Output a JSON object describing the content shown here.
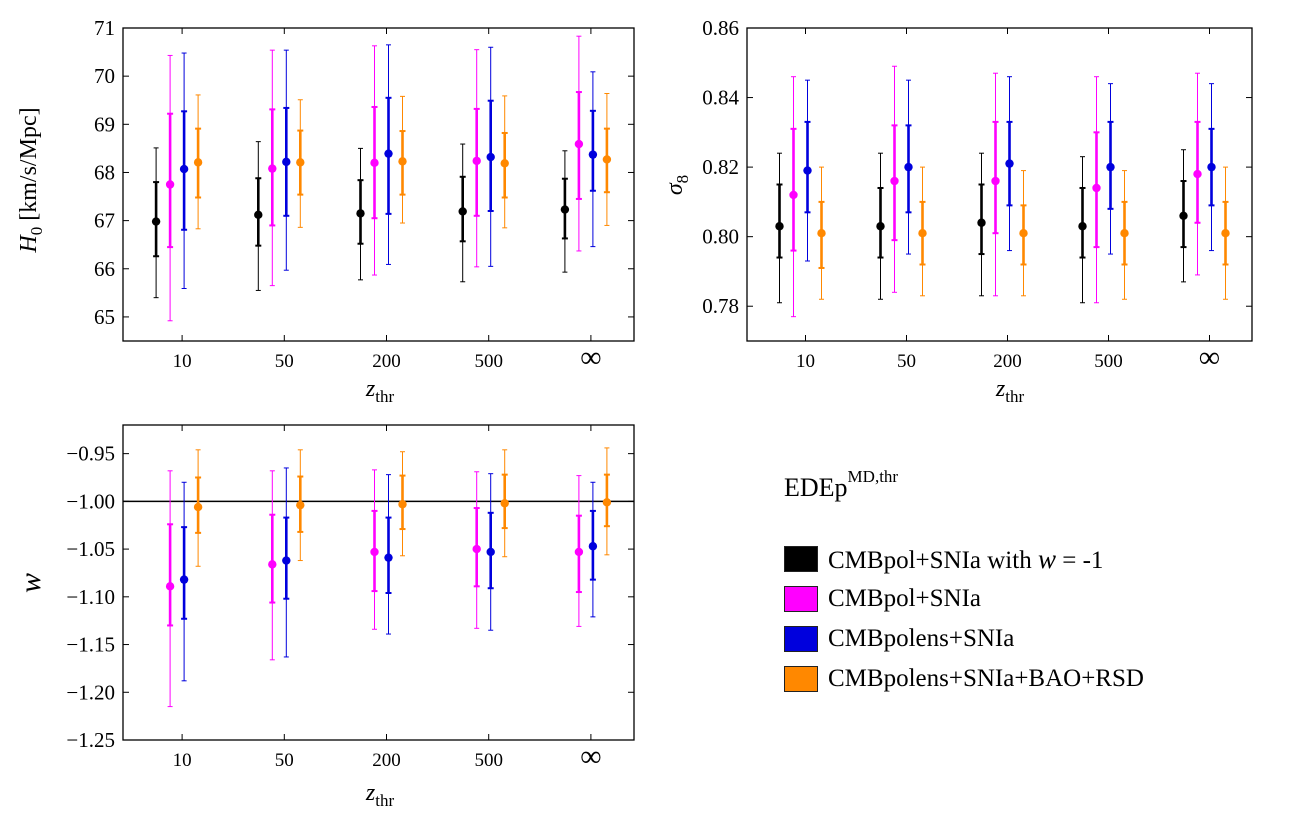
{
  "colors": {
    "black": "#000000",
    "magenta": "#ff00ff",
    "blue": "#0000dd",
    "orange": "#ff8800"
  },
  "legend": {
    "title_main": "EDEp",
    "title_sup": "MD,thr",
    "items": [
      {
        "label": "CMBpol+SNIa with w = -1",
        "label_pre": "CMBpol+SNIa with ",
        "label_var": "w",
        "label_post": " = -1",
        "color": "#000000"
      },
      {
        "label": "CMBpol+SNIa",
        "color": "#ff00ff"
      },
      {
        "label": "CMBpolens+SNIa",
        "color": "#0000dd"
      },
      {
        "label": "CMBpolens+SNIa+BAO+RSD",
        "color": "#ff8800"
      }
    ]
  },
  "chart_data": [
    {
      "type": "scatter",
      "id": "h0",
      "title": "",
      "xlabel": "z",
      "xlabel_sub": "thr",
      "ylabel": "H",
      "ylabel_sub": "0",
      "ylabel_rest": " [km/s/Mpc]",
      "categories": [
        "10",
        "50",
        "200",
        "500",
        "∞"
      ],
      "ylim": [
        64.5,
        71
      ],
      "yticks": [
        65,
        66,
        67,
        68,
        69,
        70,
        71
      ],
      "ytick_labels": [
        "65",
        "66",
        "67",
        "68",
        "69",
        "70",
        "71"
      ],
      "hline": null,
      "series": [
        {
          "name": "CMBpol+SNIa with w = -1",
          "color": "#000000",
          "values": [
            66.98,
            67.12,
            67.15,
            67.19,
            67.23
          ],
          "err68_lo": [
            66.26,
            66.48,
            66.52,
            66.57,
            66.63
          ],
          "err68_hi": [
            67.8,
            67.88,
            67.84,
            67.91,
            67.87
          ],
          "err95_lo": [
            65.4,
            65.55,
            65.77,
            65.73,
            65.93
          ],
          "err95_hi": [
            68.51,
            68.64,
            68.5,
            68.59,
            68.45
          ]
        },
        {
          "name": "CMBpol+SNIa",
          "color": "#ff00ff",
          "values": [
            67.75,
            68.08,
            68.2,
            68.24,
            68.59
          ],
          "err68_lo": [
            66.45,
            66.9,
            67.05,
            67.1,
            67.45
          ],
          "err68_hi": [
            69.22,
            69.31,
            69.36,
            69.32,
            69.67
          ],
          "err95_lo": [
            64.92,
            65.65,
            65.87,
            66.04,
            66.37
          ],
          "err95_hi": [
            70.43,
            70.54,
            70.63,
            70.55,
            70.83
          ]
        },
        {
          "name": "CMBpolens+SNIa",
          "color": "#0000dd",
          "values": [
            68.07,
            68.22,
            68.39,
            68.32,
            68.37
          ],
          "err68_lo": [
            66.81,
            67.1,
            67.14,
            67.2,
            67.62
          ],
          "err68_hi": [
            69.27,
            69.34,
            69.55,
            69.49,
            69.28
          ],
          "err95_lo": [
            65.59,
            65.97,
            66.09,
            66.05,
            66.46
          ],
          "err95_hi": [
            70.48,
            70.54,
            70.65,
            70.6,
            70.09
          ]
        },
        {
          "name": "CMBpolens+SNIa+BAO+RSD",
          "color": "#ff8800",
          "values": [
            68.21,
            68.21,
            68.23,
            68.19,
            68.27
          ],
          "err68_lo": [
            67.48,
            67.54,
            67.54,
            67.48,
            67.59
          ],
          "err68_hi": [
            68.91,
            68.87,
            68.86,
            68.82,
            68.91
          ],
          "err95_lo": [
            66.83,
            66.86,
            66.95,
            66.85,
            66.9
          ],
          "err95_hi": [
            69.61,
            69.51,
            69.58,
            69.59,
            69.64
          ]
        }
      ]
    },
    {
      "type": "scatter",
      "id": "sigma8",
      "title": "",
      "xlabel": "z",
      "xlabel_sub": "thr",
      "ylabel": "σ",
      "ylabel_sub": "8",
      "ylabel_rest": "",
      "categories": [
        "10",
        "50",
        "200",
        "500",
        "∞"
      ],
      "ylim": [
        0.77,
        0.86
      ],
      "yticks": [
        0.78,
        0.8,
        0.82,
        0.84,
        0.86
      ],
      "ytick_labels": [
        "0.78",
        "0.80",
        "0.82",
        "0.84",
        "0.86"
      ],
      "hline": null,
      "series": [
        {
          "name": "CMBpol+SNIa with w = -1",
          "color": "#000000",
          "values": [
            0.803,
            0.803,
            0.804,
            0.803,
            0.806
          ],
          "err68_lo": [
            0.794,
            0.794,
            0.795,
            0.794,
            0.797
          ],
          "err68_hi": [
            0.815,
            0.814,
            0.815,
            0.814,
            0.816
          ],
          "err95_lo": [
            0.781,
            0.782,
            0.783,
            0.781,
            0.787
          ],
          "err95_hi": [
            0.824,
            0.824,
            0.824,
            0.823,
            0.825
          ]
        },
        {
          "name": "CMBpol+SNIa",
          "color": "#ff00ff",
          "values": [
            0.812,
            0.816,
            0.816,
            0.814,
            0.818
          ],
          "err68_lo": [
            0.796,
            0.799,
            0.801,
            0.797,
            0.804
          ],
          "err68_hi": [
            0.831,
            0.832,
            0.833,
            0.83,
            0.833
          ],
          "err95_lo": [
            0.777,
            0.784,
            0.783,
            0.781,
            0.789
          ],
          "err95_hi": [
            0.846,
            0.849,
            0.847,
            0.846,
            0.847
          ]
        },
        {
          "name": "CMBpolens+SNIa",
          "color": "#0000dd",
          "values": [
            0.819,
            0.82,
            0.821,
            0.82,
            0.82
          ],
          "err68_lo": [
            0.807,
            0.807,
            0.809,
            0.808,
            0.809
          ],
          "err68_hi": [
            0.833,
            0.832,
            0.833,
            0.833,
            0.831
          ],
          "err95_lo": [
            0.793,
            0.795,
            0.796,
            0.795,
            0.796
          ],
          "err95_hi": [
            0.845,
            0.845,
            0.846,
            0.844,
            0.844
          ]
        },
        {
          "name": "CMBpolens+SNIa+BAO+RSD",
          "color": "#ff8800",
          "values": [
            0.801,
            0.801,
            0.801,
            0.801,
            0.801
          ],
          "err68_lo": [
            0.791,
            0.792,
            0.792,
            0.792,
            0.792
          ],
          "err68_hi": [
            0.81,
            0.81,
            0.809,
            0.81,
            0.81
          ],
          "err95_lo": [
            0.782,
            0.783,
            0.783,
            0.782,
            0.782
          ],
          "err95_hi": [
            0.82,
            0.82,
            0.819,
            0.819,
            0.82
          ]
        }
      ]
    },
    {
      "type": "scatter",
      "id": "w",
      "title": "",
      "xlabel": "z",
      "xlabel_sub": "thr",
      "ylabel": "w",
      "ylabel_sub": "",
      "ylabel_rest": "",
      "categories": [
        "10",
        "50",
        "200",
        "500",
        "∞"
      ],
      "ylim": [
        -1.25,
        -0.92
      ],
      "yticks": [
        -1.25,
        -1.2,
        -1.15,
        -1.1,
        -1.05,
        -1.0,
        -0.95
      ],
      "ytick_labels": [
        "−1.25",
        "−1.20",
        "−1.15",
        "−1.10",
        "−1.05",
        "−1.00",
        "−0.95"
      ],
      "hline": -1.0,
      "series": [
        {
          "name": "CMBpol+SNIa",
          "color": "#ff00ff",
          "values": [
            -1.089,
            -1.066,
            -1.053,
            -1.05,
            -1.053
          ],
          "err68_lo": [
            -1.13,
            -1.106,
            -1.094,
            -1.089,
            -1.095
          ],
          "err68_hi": [
            -1.024,
            -1.014,
            -1.01,
            -1.007,
            -1.015
          ],
          "err95_lo": [
            -1.215,
            -1.166,
            -1.134,
            -1.133,
            -1.131
          ],
          "err95_hi": [
            -0.968,
            -0.968,
            -0.967,
            -0.969,
            -0.973
          ]
        },
        {
          "name": "CMBpolens+SNIa",
          "color": "#0000dd",
          "values": [
            -1.082,
            -1.062,
            -1.059,
            -1.053,
            -1.047
          ],
          "err68_lo": [
            -1.123,
            -1.102,
            -1.096,
            -1.091,
            -1.082
          ],
          "err68_hi": [
            -1.027,
            -1.017,
            -1.017,
            -1.012,
            -1.01
          ],
          "err95_lo": [
            -1.188,
            -1.163,
            -1.139,
            -1.135,
            -1.121
          ],
          "err95_hi": [
            -0.98,
            -0.965,
            -0.972,
            -0.971,
            -0.98
          ]
        },
        {
          "name": "CMBpolens+SNIa+BAO+RSD",
          "color": "#ff8800",
          "values": [
            -1.006,
            -1.004,
            -1.003,
            -1.002,
            -1.001
          ],
          "err68_lo": [
            -1.033,
            -1.032,
            -1.029,
            -1.028,
            -1.026
          ],
          "err68_hi": [
            -0.975,
            -0.974,
            -0.973,
            -0.972,
            -0.972
          ],
          "err95_lo": [
            -1.068,
            -1.062,
            -1.057,
            -1.058,
            -1.056
          ],
          "err95_hi": [
            -0.946,
            -0.946,
            -0.948,
            -0.946,
            -0.944
          ]
        }
      ]
    }
  ]
}
